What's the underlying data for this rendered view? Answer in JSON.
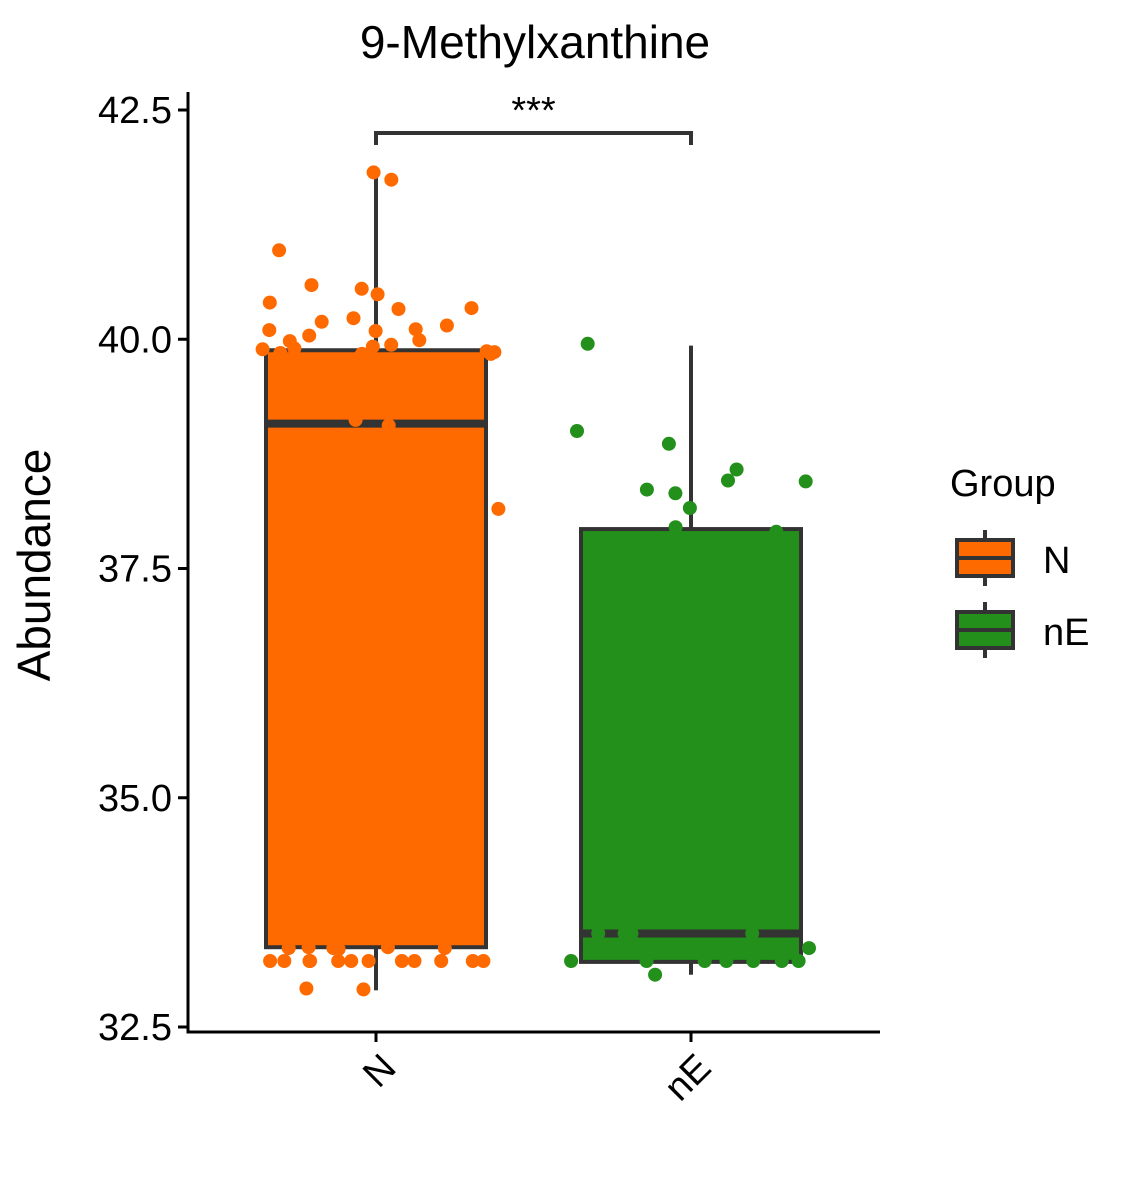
{
  "chart_data": {
    "type": "box",
    "title": "9-Methylxanthine",
    "xlabel": "",
    "ylabel": "Abundance",
    "ylim": [
      32.4,
      42.75
    ],
    "yticks": [
      "32.5",
      "35.0",
      "37.5",
      "40.0",
      "42.5"
    ],
    "categories": [
      "N",
      "nE"
    ],
    "grid": false,
    "legend": {
      "title": "Group",
      "position": "right",
      "entries": [
        "N",
        "nE"
      ]
    },
    "colors": {
      "N": "#ff6a00",
      "nE": "#22901a",
      "outline": "#333333"
    },
    "significance": {
      "pair": [
        "N",
        "nE"
      ],
      "label": "***",
      "y": 42.3
    },
    "boxes": [
      {
        "name": "N",
        "min": 32.9,
        "q1": 33.37,
        "median": 39.08,
        "q3": 39.88,
        "max": 41.78
      },
      {
        "name": "nE",
        "min": 33.07,
        "q1": 33.21,
        "median": 33.52,
        "q3": 37.93,
        "max": 39.93
      }
    ],
    "points": [
      {
        "group": "N",
        "values": [
          41.82,
          41.74,
          40.97,
          40.59,
          40.55,
          40.49,
          40.4,
          40.34,
          40.33,
          40.23,
          40.19,
          40.15,
          40.11,
          40.1,
          40.09,
          40.04,
          39.99,
          39.98,
          39.94,
          39.92,
          39.9,
          39.89,
          39.87,
          39.86,
          39.85,
          39.84,
          39.84,
          39.55,
          39.12,
          39.06,
          38.84,
          38.5,
          38.31,
          38.15,
          33.52,
          33.37,
          33.37,
          33.36,
          33.36,
          33.36,
          33.35,
          33.22,
          33.22,
          33.22,
          33.22,
          33.22,
          33.22,
          33.22,
          33.22,
          33.22,
          33.22,
          33.22,
          33.22,
          32.92,
          32.91
        ]
      },
      {
        "group": "nE",
        "values": [
          39.95,
          39.0,
          38.86,
          38.58,
          38.46,
          38.45,
          38.36,
          38.32,
          38.16,
          37.95,
          37.9,
          37.58,
          36.97,
          33.52,
          33.52,
          33.52,
          33.52,
          33.38,
          33.38,
          33.37,
          33.36,
          33.22,
          33.22,
          33.22,
          33.22,
          33.22,
          33.22,
          33.22,
          33.07
        ]
      }
    ]
  }
}
